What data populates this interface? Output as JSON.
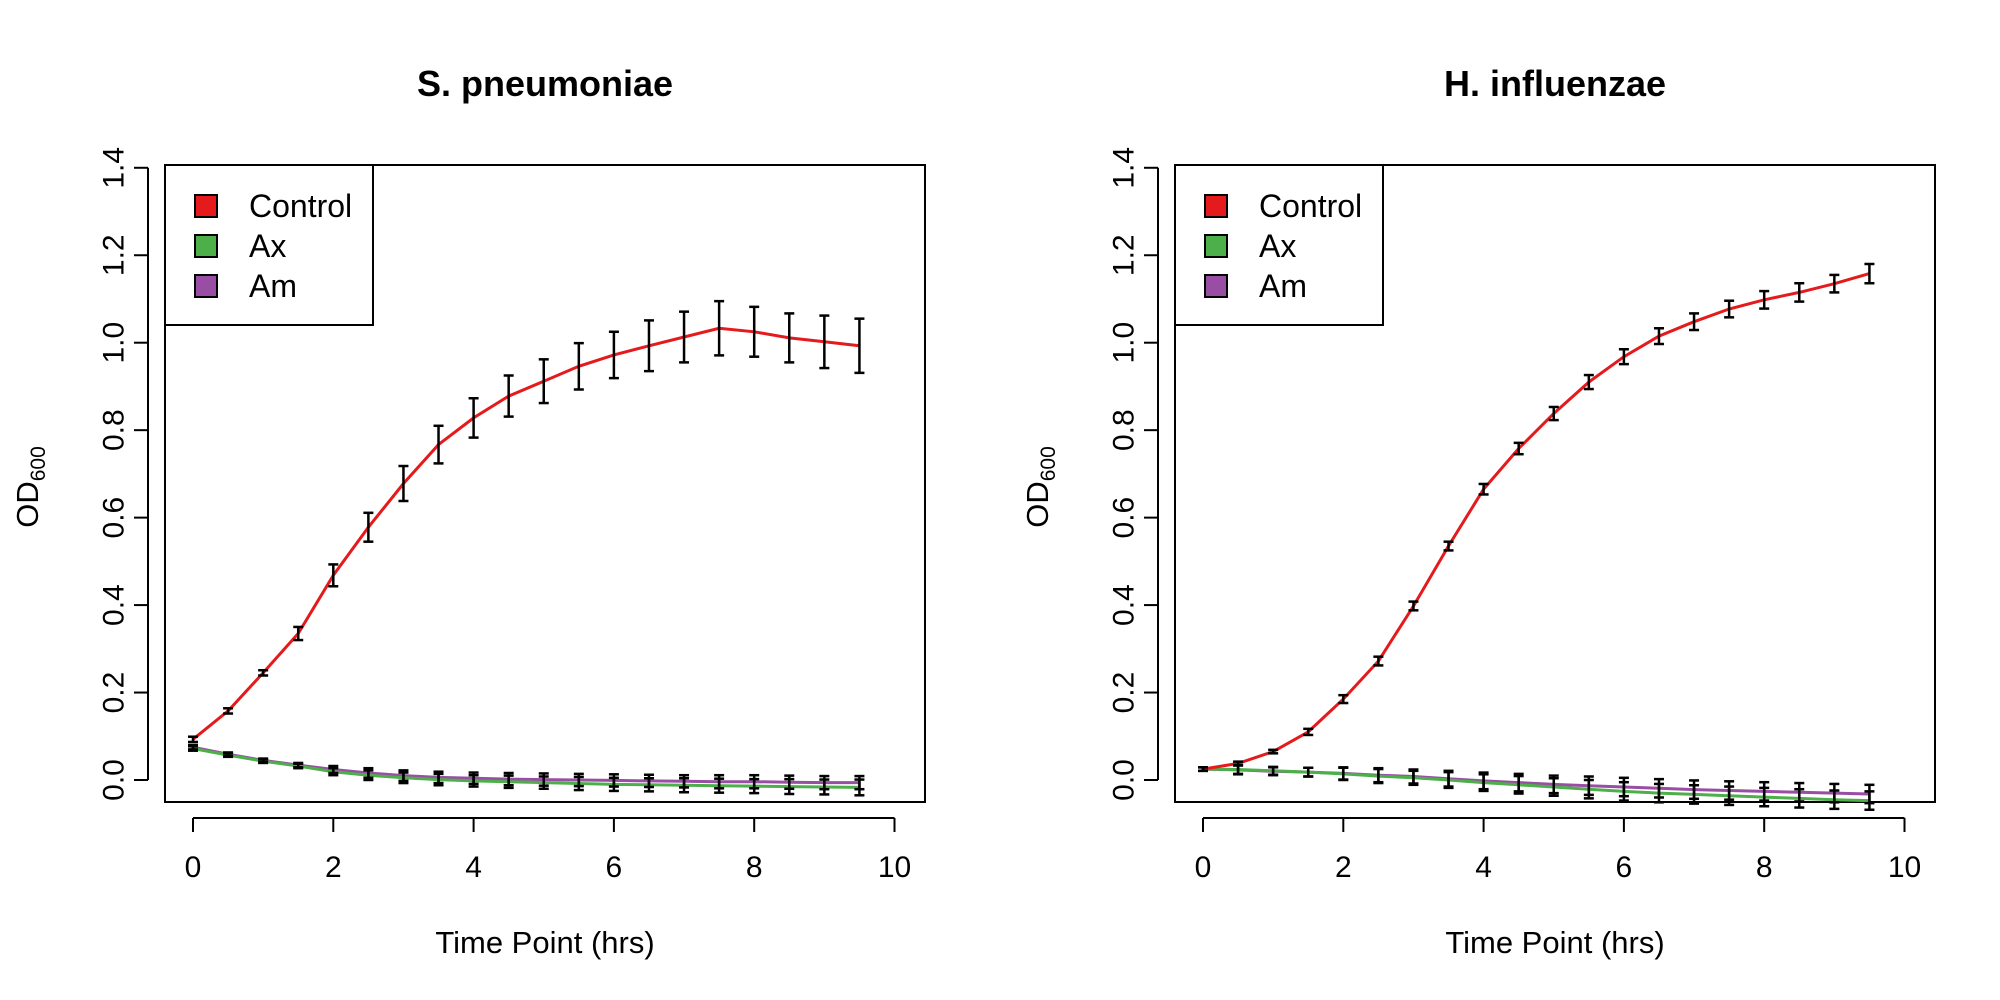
{
  "chart_data": [
    {
      "type": "line",
      "title": "S. pneumoniae",
      "xlabel": "Time Point (hrs)",
      "ylabel": "OD",
      "ylabel_subscript": "600",
      "xlim": [
        0,
        10
      ],
      "ylim": [
        -0.05,
        1.4
      ],
      "x_ticks": [
        0,
        2,
        4,
        6,
        8,
        10
      ],
      "y_ticks": [
        0.0,
        0.2,
        0.4,
        0.6,
        0.8,
        1.0,
        1.2,
        1.4
      ],
      "x_tick_labels": [
        "0",
        "2",
        "4",
        "6",
        "8",
        "10"
      ],
      "y_tick_labels": [
        "0.0",
        "0.2",
        "0.4",
        "0.6",
        "0.8",
        "1.0",
        "1.2",
        "1.4"
      ],
      "legend_position": "top-left",
      "grid": false,
      "x": [
        0,
        0.5,
        1,
        1.5,
        2,
        2.5,
        3,
        3.5,
        4,
        4.5,
        5,
        5.5,
        6,
        6.5,
        7,
        7.5,
        8,
        8.5,
        9,
        9.5
      ],
      "series": [
        {
          "name": "Control",
          "color": "#e41a1c",
          "values": [
            0.093,
            0.158,
            0.245,
            0.335,
            0.468,
            0.578,
            0.678,
            0.767,
            0.828,
            0.878,
            0.912,
            0.946,
            0.972,
            0.993,
            1.013,
            1.033,
            1.025,
            1.011,
            1.002,
            0.993
          ],
          "errors": [
            0.006,
            0.006,
            0.006,
            0.015,
            0.025,
            0.033,
            0.04,
            0.043,
            0.045,
            0.047,
            0.05,
            0.053,
            0.053,
            0.058,
            0.058,
            0.062,
            0.057,
            0.056,
            0.06,
            0.062
          ]
        },
        {
          "name": "Ax",
          "color": "#4daf4a",
          "values": [
            0.072,
            0.057,
            0.043,
            0.032,
            0.019,
            0.011,
            0.005,
            0.001,
            -0.002,
            -0.004,
            -0.006,
            -0.008,
            -0.01,
            -0.011,
            -0.012,
            -0.013,
            -0.014,
            -0.015,
            -0.016,
            -0.017
          ],
          "errors": [
            0.005,
            0.004,
            0.004,
            0.005,
            0.008,
            0.011,
            0.012,
            0.013,
            0.013,
            0.014,
            0.014,
            0.015,
            0.015,
            0.015,
            0.016,
            0.016,
            0.016,
            0.017,
            0.017,
            0.018
          ]
        },
        {
          "name": "Am",
          "color": "#984ea3",
          "values": [
            0.075,
            0.059,
            0.045,
            0.034,
            0.024,
            0.016,
            0.01,
            0.006,
            0.004,
            0.002,
            0.001,
            0.0,
            -0.001,
            -0.002,
            -0.003,
            -0.004,
            -0.004,
            -0.005,
            -0.006,
            -0.006
          ],
          "errors": [
            0.005,
            0.004,
            0.004,
            0.005,
            0.008,
            0.011,
            0.012,
            0.013,
            0.013,
            0.014,
            0.014,
            0.014,
            0.014,
            0.014,
            0.014,
            0.015,
            0.015,
            0.015,
            0.015,
            0.015
          ]
        }
      ]
    },
    {
      "type": "line",
      "title": "H. influenzae",
      "xlabel": "Time Point (hrs)",
      "ylabel": "OD",
      "ylabel_subscript": "600",
      "xlim": [
        0,
        10
      ],
      "ylim": [
        -0.05,
        1.4
      ],
      "x_ticks": [
        0,
        2,
        4,
        6,
        8,
        10
      ],
      "y_ticks": [
        0.0,
        0.2,
        0.4,
        0.6,
        0.8,
        1.0,
        1.2,
        1.4
      ],
      "x_tick_labels": [
        "0",
        "2",
        "4",
        "6",
        "8",
        "10"
      ],
      "y_tick_labels": [
        "0.0",
        "0.2",
        "0.4",
        "0.6",
        "0.8",
        "1.0",
        "1.2",
        "1.4"
      ],
      "legend_position": "top-left",
      "grid": false,
      "x": [
        0,
        0.5,
        1,
        1.5,
        2,
        2.5,
        3,
        3.5,
        4,
        4.5,
        5,
        5.5,
        6,
        6.5,
        7,
        7.5,
        8,
        8.5,
        9,
        9.5
      ],
      "series": [
        {
          "name": "Control",
          "color": "#e41a1c",
          "values": [
            0.025,
            0.038,
            0.065,
            0.11,
            0.185,
            0.272,
            0.398,
            0.535,
            0.665,
            0.758,
            0.838,
            0.91,
            0.968,
            1.015,
            1.048,
            1.077,
            1.098,
            1.115,
            1.135,
            1.158
          ],
          "errors": [
            0.004,
            0.004,
            0.004,
            0.007,
            0.009,
            0.01,
            0.01,
            0.01,
            0.012,
            0.013,
            0.015,
            0.016,
            0.017,
            0.018,
            0.019,
            0.019,
            0.02,
            0.021,
            0.02,
            0.022
          ]
        },
        {
          "name": "Ax",
          "color": "#4daf4a",
          "values": [
            0.025,
            0.024,
            0.021,
            0.018,
            0.014,
            0.009,
            0.005,
            0.0,
            -0.006,
            -0.011,
            -0.016,
            -0.021,
            -0.026,
            -0.03,
            -0.033,
            -0.036,
            -0.039,
            -0.042,
            -0.045,
            -0.047
          ],
          "errors": [
            0.004,
            0.01,
            0.009,
            0.01,
            0.014,
            0.016,
            0.016,
            0.018,
            0.019,
            0.02,
            0.02,
            0.021,
            0.021,
            0.021,
            0.021,
            0.021,
            0.021,
            0.021,
            0.021,
            0.021
          ]
        },
        {
          "name": "Am",
          "color": "#984ea3",
          "values": [
            0.025,
            0.023,
            0.02,
            0.018,
            0.015,
            0.011,
            0.008,
            0.003,
            -0.002,
            -0.006,
            -0.01,
            -0.013,
            -0.016,
            -0.019,
            -0.022,
            -0.024,
            -0.026,
            -0.028,
            -0.03,
            -0.032
          ],
          "errors": [
            0.004,
            0.01,
            0.009,
            0.01,
            0.014,
            0.016,
            0.016,
            0.018,
            0.019,
            0.02,
            0.02,
            0.021,
            0.021,
            0.021,
            0.021,
            0.021,
            0.021,
            0.021,
            0.021,
            0.021
          ]
        }
      ]
    }
  ]
}
